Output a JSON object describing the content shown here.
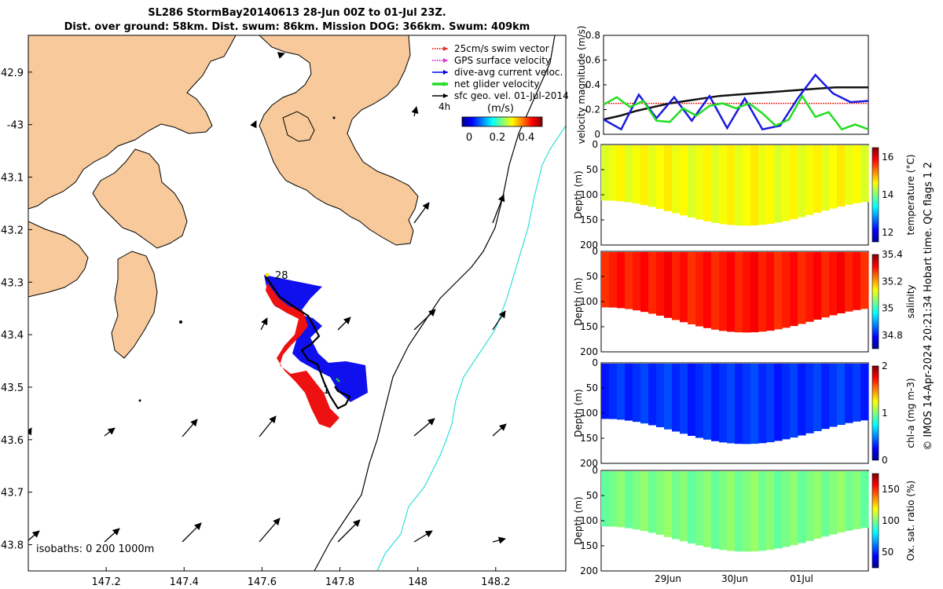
{
  "title": {
    "line1": "SL286 StormBay20140613 28-Jun 00Z to 01-Jul 23Z.",
    "line2": "Dist. over ground: 58km. Dist. swum: 86km. Mission DOG: 366km. Swum: 409km"
  },
  "legend": {
    "items": [
      {
        "label": "25cm/s swim vector",
        "color": "#e8322b",
        "style": "dotted-arrow"
      },
      {
        "label": "GPS surface velocity",
        "color": "#d93cd9",
        "style": "dotted-arrow"
      },
      {
        "label": "dive-avg current veloc.",
        "color": "#0000ee",
        "style": "line"
      },
      {
        "label": "net glider velocity",
        "color": "#22dd22",
        "style": "thick-line"
      },
      {
        "label": "sfc geo. vel. 01-Jul-2014",
        "color": "#000000",
        "style": "arrow"
      }
    ],
    "duration_label": "4h",
    "colorbar_unit": "(m/s)",
    "colorbar_ticks": [
      "0",
      "0.2",
      "0.4"
    ]
  },
  "chart_data": [
    {
      "type": "map",
      "xlabel_ticks": [
        "147.2",
        "147.4",
        "147.6",
        "147.8",
        "148",
        "148.2"
      ],
      "x_tick_values": [
        147.2,
        147.4,
        147.6,
        147.8,
        148.0,
        148.2
      ],
      "ylabel_ticks": [
        "42.9",
        "-43",
        "43.1",
        "43.2",
        "43.3",
        "43.4",
        "43.5",
        "43.6",
        "43.7",
        "43.8"
      ],
      "y_tick_values": [
        -42.9,
        -43.0,
        -43.1,
        -43.2,
        -43.3,
        -43.4,
        -43.5,
        -43.6,
        -43.7,
        -43.8
      ],
      "xlim": [
        147.0,
        148.38
      ],
      "ylim": [
        -43.85,
        -42.83
      ],
      "annotations": [
        "28",
        "1"
      ],
      "isobath_note": "isobaths: 0   200  1000m",
      "land_color": "#f8c99a",
      "isobath_200_color": "#000000",
      "isobath_1000_color": "#33dddd"
    },
    {
      "type": "line",
      "ylabel": "velocity magnitude (m/s)",
      "ylim": [
        0,
        0.8
      ],
      "y_ticks": [
        "0",
        "0.2",
        "0.4",
        "0.6",
        "0.8"
      ],
      "x_ticks": [
        "29Jun",
        "30Jun",
        "01Jul"
      ],
      "series": [
        {
          "color": "#e8322b",
          "values": [
            0.25,
            0.25,
            0.25,
            0.25,
            0.25,
            0.25,
            0.25,
            0.25,
            0.25,
            0.25,
            0.25,
            0.25,
            0.25,
            0.25,
            0.25,
            0.25,
            0.25
          ]
        },
        {
          "color": "#111111",
          "values": [
            0.12,
            0.15,
            0.19,
            0.22,
            0.25,
            0.27,
            0.29,
            0.31,
            0.32,
            0.33,
            0.34,
            0.35,
            0.36,
            0.37,
            0.38,
            0.38,
            0.38
          ]
        },
        {
          "color": "#1a1adf",
          "values": [
            0.12,
            0.04,
            0.32,
            0.13,
            0.3,
            0.11,
            0.31,
            0.05,
            0.29,
            0.04,
            0.07,
            0.29,
            0.48,
            0.33,
            0.26,
            0.27
          ]
        },
        {
          "color": "#22dd22",
          "values": [
            0.24,
            0.3,
            0.22,
            0.27,
            0.11,
            0.1,
            0.21,
            0.15,
            0.23,
            0.25,
            0.21,
            0.25,
            0.17,
            0.07,
            0.12,
            0.31,
            0.14,
            0.18,
            0.04,
            0.08,
            0.04
          ]
        }
      ]
    },
    {
      "type": "heatmap",
      "variable": "temperature",
      "colorbar_label": "temperature (°C)",
      "colorbar_ticks": [
        "16",
        "14",
        "12"
      ],
      "colorbar_tick_values": [
        16,
        14,
        12
      ],
      "colorbar_range": [
        11.5,
        16.5
      ],
      "y_ticks": [
        "0",
        "50",
        "100",
        "150",
        "200"
      ],
      "ylabel": "Depth (m)",
      "typical_value": 14.6
    },
    {
      "type": "heatmap",
      "variable": "salinity",
      "colorbar_label": "salinity",
      "colorbar_ticks": [
        "35.4",
        "35.2",
        "35",
        "34.8"
      ],
      "colorbar_tick_values": [
        35.4,
        35.2,
        35.0,
        34.8
      ],
      "colorbar_range": [
        34.7,
        35.4
      ],
      "y_ticks": [
        "0",
        "50",
        "100",
        "150",
        "200"
      ],
      "ylabel": "Depth (m)",
      "typical_value": 35.3
    },
    {
      "type": "heatmap",
      "variable": "chlorophyll-a",
      "colorbar_label": "chl-a (mg m-3)",
      "colorbar_ticks": [
        "2",
        "1",
        "0"
      ],
      "colorbar_tick_values": [
        2,
        1,
        0
      ],
      "colorbar_range": [
        0,
        2
      ],
      "y_ticks": [
        "0",
        "50",
        "100",
        "150",
        "200"
      ],
      "ylabel": "Depth (m)",
      "typical_value": 0.35
    },
    {
      "type": "heatmap",
      "variable": "oxygen saturation",
      "colorbar_label": "Ox. sat. ratio (%)",
      "colorbar_ticks": [
        "150",
        "100",
        "50"
      ],
      "colorbar_tick_values": [
        150,
        100,
        50
      ],
      "colorbar_range": [
        25,
        175
      ],
      "y_ticks": [
        "0",
        "50",
        "100",
        "150",
        "200"
      ],
      "ylabel": "Depth (m)",
      "typical_value": 100,
      "x_ticks": [
        "29Jun",
        "30Jun",
        "01Jul"
      ]
    }
  ],
  "side_note": "© IMOS 14-Apr-2024 20:21:34 Hobart time. QC flags 1  2"
}
